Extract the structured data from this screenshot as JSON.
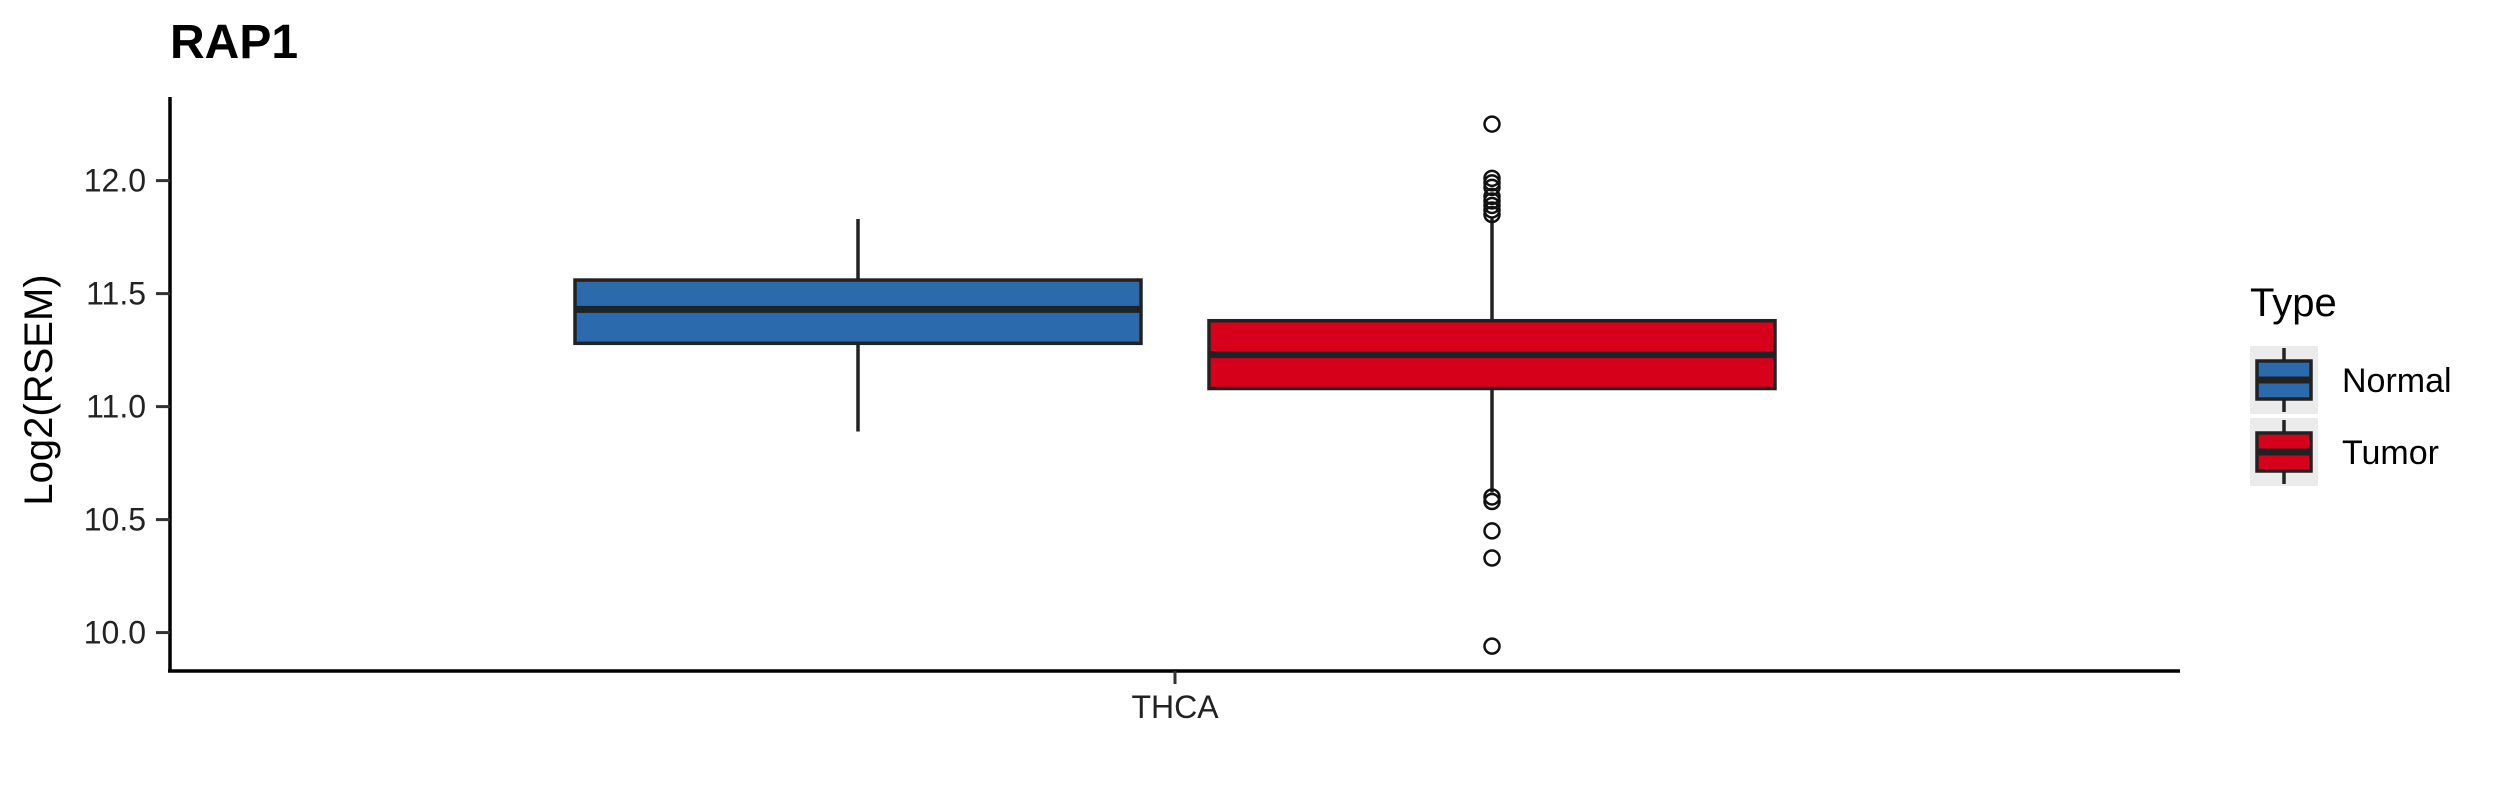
{
  "chart_data": {
    "type": "boxplot",
    "title": "RAP1",
    "xlabel": "",
    "ylabel": "Log2(RSEM)",
    "ylim": [
      9.83,
      12.37
    ],
    "yticks": [
      "10.0",
      "10.5",
      "11.0",
      "11.5",
      "12.0"
    ],
    "categories": [
      "THCA"
    ],
    "grid": false,
    "legend": {
      "title": "Type",
      "position": "right"
    },
    "series": [
      {
        "name": "Normal",
        "color": "#2B6AAD",
        "boxes": [
          {
            "category": "THCA",
            "q1": 11.28,
            "median": 11.43,
            "q3": 11.56,
            "whisker_low": 10.89,
            "whisker_high": 11.83,
            "outliers": []
          }
        ]
      },
      {
        "name": "Tumor",
        "color": "#D7001A",
        "boxes": [
          {
            "category": "THCA",
            "q1": 11.08,
            "median": 11.23,
            "q3": 11.38,
            "whisker_low": 10.62,
            "whisker_high": 11.84,
            "outliers": [
              12.25,
              12.01,
              11.99,
              11.97,
              11.93,
              11.91,
              11.89,
              11.87,
              11.85,
              10.6,
              10.58,
              10.45,
              10.33,
              9.94
            ]
          }
        ]
      }
    ]
  }
}
